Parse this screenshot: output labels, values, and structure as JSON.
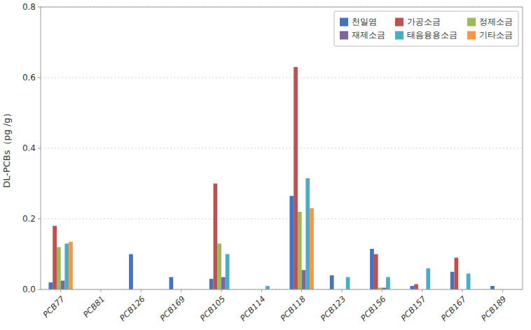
{
  "chart_data": {
    "type": "bar",
    "ylabel": "DL-PCBs（pg /g）",
    "categories": [
      "PCB77",
      "PCB81",
      "PCB126",
      "PCB169",
      "PCB105",
      "PCB114",
      "PCB118",
      "PCB123",
      "PCB156",
      "PCB157",
      "PCB167",
      "PCB189"
    ],
    "series": [
      {
        "name": "천일염",
        "color": "#4472C4",
        "values": [
          0.02,
          0.0,
          0.1,
          0.035,
          0.03,
          0.0,
          0.265,
          0.04,
          0.115,
          0.01,
          0.05,
          0.01
        ]
      },
      {
        "name": "가공소금",
        "color": "#C0504D",
        "values": [
          0.18,
          0.0,
          0.0,
          0.0,
          0.3,
          0.0,
          0.63,
          0.0,
          0.1,
          0.015,
          0.09,
          0.0
        ]
      },
      {
        "name": "정제소금",
        "color": "#9BBB59",
        "values": [
          0.12,
          0.0,
          0.0,
          0.0,
          0.13,
          0.0,
          0.22,
          0.0,
          0.005,
          0.0,
          0.0,
          0.0
        ]
      },
      {
        "name": "재제소금",
        "color": "#8064A2",
        "values": [
          0.025,
          0.0,
          0.0,
          0.0,
          0.035,
          0.0,
          0.055,
          0.0,
          0.005,
          0.0,
          0.0,
          0.0
        ]
      },
      {
        "name": "태음융용소금",
        "color": "#4BACC6",
        "values": [
          0.13,
          0.0,
          0.0,
          0.0,
          0.1,
          0.01,
          0.315,
          0.035,
          0.035,
          0.06,
          0.045,
          0.0
        ]
      },
      {
        "name": "기타소금",
        "color": "#F79646",
        "values": [
          0.135,
          0.0,
          0.0,
          0.0,
          0.0,
          0.0,
          0.23,
          0.0,
          0.0,
          0.0,
          0.0,
          0.0
        ]
      }
    ],
    "ylim": [
      0,
      0.8
    ],
    "yticks": [
      {
        "value": 0.0,
        "label": "0.0"
      },
      0.2,
      0.4,
      0.6,
      0.8
    ],
    "grid": true,
    "legend": "upper right"
  }
}
